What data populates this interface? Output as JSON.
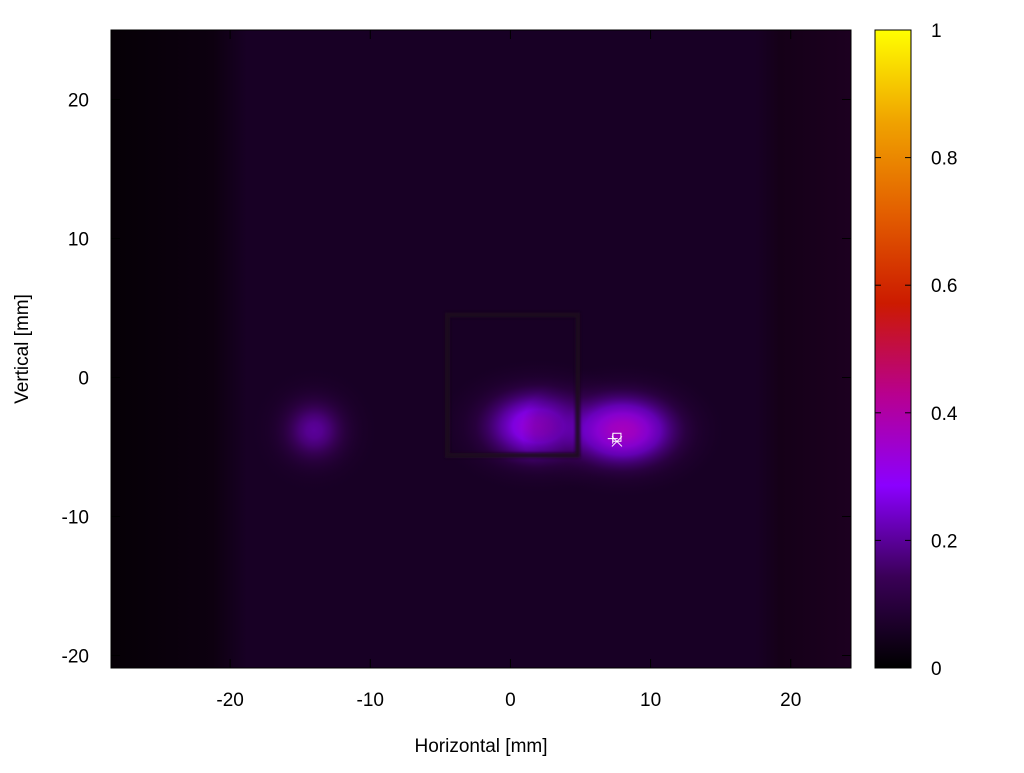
{
  "chart_data": {
    "type": "heatmap",
    "title": "",
    "xlabel": "Horizontal [mm]",
    "ylabel": "Vertical [mm]",
    "xlim": [
      -28.5,
      24.3
    ],
    "ylim": [
      -20.9,
      25.0
    ],
    "x_ticks": [
      -20,
      -10,
      0,
      10,
      20
    ],
    "y_ticks": [
      -20,
      -10,
      0,
      10,
      20
    ],
    "x_tick_labels": [
      "-20",
      "-10",
      "0",
      "10",
      "20"
    ],
    "y_tick_labels": [
      "-20",
      "-10",
      "0",
      "10",
      "20"
    ],
    "colorbar": {
      "range": [
        0,
        1
      ],
      "ticks": [
        0,
        0.2,
        0.4,
        0.6,
        0.8,
        1
      ],
      "tick_labels": [
        "0",
        "0.2",
        "0.4",
        "0.6",
        "0.8",
        "1"
      ],
      "palette": [
        "#000000",
        "#3a0057",
        "#8b00ff",
        "#b8008f",
        "#cc1a00",
        "#e35f00",
        "#f0a300",
        "#ffff00"
      ]
    },
    "background_level": 0.06,
    "blobs": [
      {
        "x": 2.0,
        "y": -3.5,
        "sx": 4.5,
        "sy": 3.0,
        "value": 0.34
      },
      {
        "x": 8.0,
        "y": -3.8,
        "sx": 4.5,
        "sy": 3.0,
        "value": 0.37
      },
      {
        "x": -14.0,
        "y": -3.8,
        "sx": 2.8,
        "sy": 2.8,
        "value": 0.2
      }
    ],
    "grid_lines_vertical": [
      -9.8,
      0.2,
      9.8
    ],
    "grid_lines_horizontal": [
      18.5,
      9.8,
      -0.3,
      -10.8
    ],
    "rectangle": {
      "x0": -4.5,
      "x1": 4.8,
      "y0": -5.6,
      "y1": 4.5
    },
    "dark_bands": [
      [
        -28.5,
        -18.8
      ],
      [
        17.5,
        24.3
      ]
    ],
    "markers": [
      {
        "shape": "plus",
        "x": 7.3,
        "y": -4.4
      },
      {
        "shape": "cross",
        "x": 7.6,
        "y": -4.6
      },
      {
        "shape": "square",
        "x": 7.6,
        "y": -4.3
      }
    ]
  }
}
